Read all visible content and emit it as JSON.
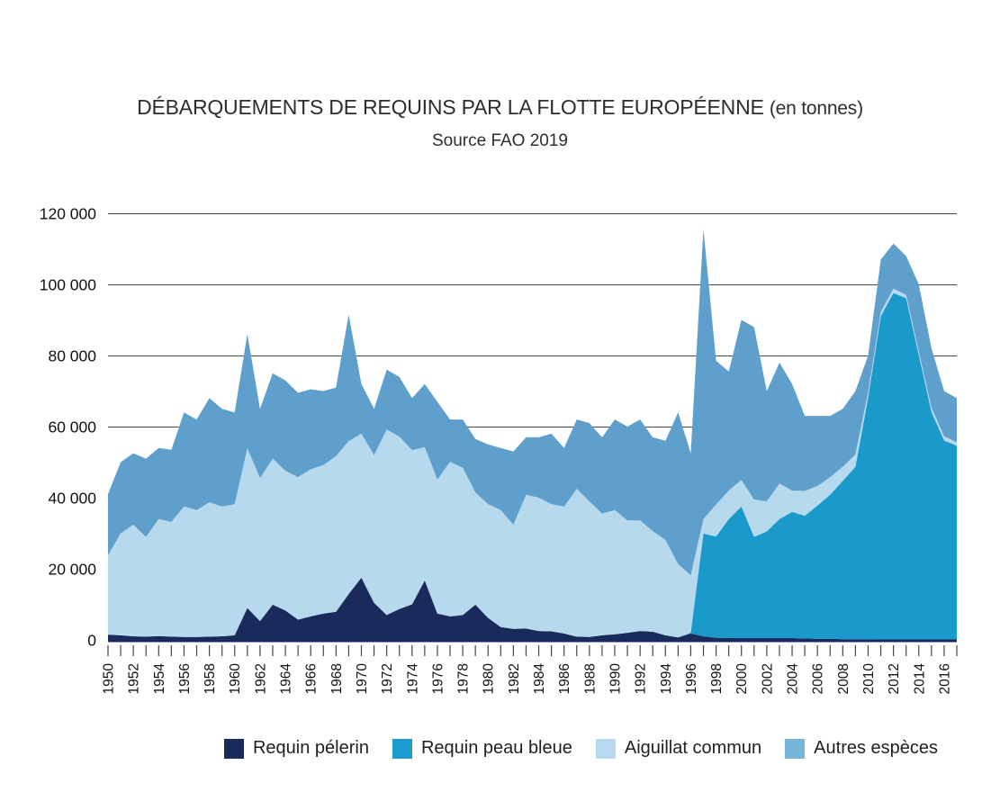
{
  "title": {
    "main": "DÉBARQUEMENTS DE REQUINS PAR LA FLOTTE EUROPÉENNE",
    "unit": "(en tonnes)",
    "subtitle": "Source FAO 2019"
  },
  "axes": {
    "y_tick_labels": [
      "0",
      "20 000",
      "40 000",
      "60 000",
      "80 000",
      "100 000",
      "120 000"
    ],
    "y_tick_values": [
      0,
      20000,
      40000,
      60000,
      80000,
      100000,
      120000
    ],
    "x_first_year": 1950,
    "x_last_year": 2017,
    "x_label_every": 2
  },
  "colors": {
    "grid_line": "#4a4a4a",
    "axis_line": "#1a2b5b",
    "tick": "#444444",
    "label_text": "#111111"
  },
  "chart_data": {
    "type": "area",
    "stacked": true,
    "title": "DÉBARQUEMENTS DE REQUINS PAR LA FLOTTE EUROPÉENNE (en tonnes)",
    "subtitle": "Source FAO 2019",
    "xlabel": "",
    "ylabel": "",
    "ylim": [
      0,
      120000
    ],
    "grid": "horizontal",
    "legend_position": "bottom",
    "x": [
      1950,
      1951,
      1952,
      1953,
      1954,
      1955,
      1956,
      1957,
      1958,
      1959,
      1960,
      1961,
      1962,
      1963,
      1964,
      1965,
      1966,
      1967,
      1968,
      1969,
      1970,
      1971,
      1972,
      1973,
      1974,
      1975,
      1976,
      1977,
      1978,
      1979,
      1980,
      1981,
      1982,
      1983,
      1984,
      1985,
      1986,
      1987,
      1988,
      1989,
      1990,
      1991,
      1992,
      1993,
      1994,
      1995,
      1996,
      1997,
      1998,
      1999,
      2000,
      2001,
      2002,
      2003,
      2004,
      2005,
      2006,
      2007,
      2008,
      2009,
      2010,
      2011,
      2012,
      2013,
      2014,
      2015,
      2016,
      2017
    ],
    "series": [
      {
        "name": "Requin pélerin",
        "color": "#1a2b5b",
        "legend_color": "#1a2b5b",
        "values": [
          1500,
          1300,
          1000,
          900,
          1100,
          900,
          800,
          800,
          900,
          1000,
          1300,
          9000,
          5300,
          9900,
          8300,
          5700,
          6600,
          7400,
          7900,
          12900,
          17500,
          10400,
          7000,
          8700,
          10000,
          16700,
          7400,
          6600,
          7000,
          9900,
          6200,
          3600,
          3100,
          3200,
          2500,
          2400,
          1800,
          900,
          800,
          1300,
          1600,
          2000,
          2500,
          2300,
          1300,
          700,
          1800,
          1000,
          600,
          500,
          500,
          500,
          500,
          500,
          500,
          400,
          300,
          300,
          200,
          200,
          200,
          100,
          100,
          100,
          100,
          100,
          100,
          100
        ]
      },
      {
        "name": "Requin peau bleue",
        "color": "#199aca",
        "legend_color": "#1a9cd0",
        "values": [
          0,
          0,
          0,
          0,
          0,
          0,
          0,
          0,
          0,
          0,
          0,
          0,
          0,
          0,
          0,
          0,
          0,
          0,
          0,
          0,
          0,
          0,
          0,
          0,
          0,
          0,
          0,
          0,
          0,
          0,
          0,
          0,
          0,
          0,
          0,
          0,
          0,
          0,
          0,
          0,
          0,
          0,
          0,
          0,
          0,
          0,
          200,
          28900,
          28500,
          33500,
          37000,
          28500,
          30000,
          33500,
          35500,
          34500,
          37500,
          40500,
          44500,
          48500,
          68000,
          91000,
          97500,
          96000,
          80000,
          64000,
          56000,
          54500
        ]
      },
      {
        "name": "Aiguillat commun",
        "color": "#b7d9ee",
        "legend_color": "#b8d9ef",
        "values": [
          22300,
          28700,
          31400,
          28100,
          32900,
          32300,
          36700,
          35700,
          37800,
          36500,
          36900,
          44900,
          40200,
          41100,
          39300,
          40100,
          41400,
          41800,
          43800,
          43000,
          40500,
          41600,
          52200,
          48500,
          43400,
          37500,
          37700,
          43500,
          41400,
          31600,
          32000,
          32900,
          29300,
          37600,
          37500,
          35800,
          35700,
          41600,
          38200,
          34200,
          34900,
          31600,
          31100,
          28300,
          26800,
          20600,
          16200,
          4100,
          9000,
          8000,
          7500,
          10500,
          8500,
          10000,
          6000,
          7000,
          5500,
          5000,
          4000,
          3500,
          1500,
          1200,
          1200,
          1000,
          1000,
          1200,
          1200,
          1000
        ]
      },
      {
        "name": "Autres espèces",
        "color": "#5f9fcc",
        "legend_color": "#78b5da",
        "values": [
          17200,
          20000,
          20100,
          22000,
          20000,
          20300,
          26500,
          25500,
          29300,
          27500,
          25800,
          32100,
          19500,
          24000,
          25400,
          23700,
          22500,
          20800,
          19300,
          35600,
          14000,
          13000,
          16800,
          16800,
          14600,
          17800,
          21900,
          11900,
          13600,
          15000,
          16800,
          17500,
          20600,
          16200,
          17000,
          19800,
          16500,
          19500,
          22000,
          21500,
          25500,
          26400,
          28400,
          26400,
          27900,
          42700,
          34300,
          81500,
          40400,
          33500,
          45000,
          48500,
          31000,
          34000,
          30000,
          21100,
          19700,
          17200,
          16300,
          17800,
          10300,
          14700,
          12700,
          10900,
          18900,
          16700,
          12700,
          12400
        ]
      }
    ]
  }
}
